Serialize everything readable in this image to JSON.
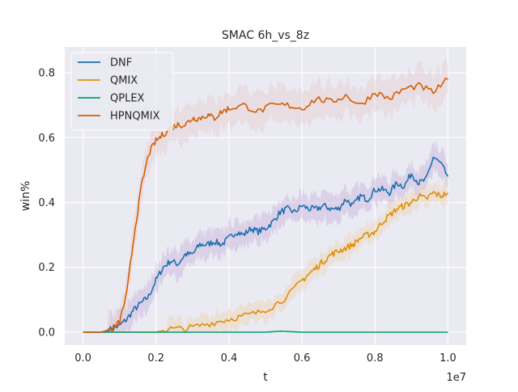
{
  "chart_data": {
    "type": "line",
    "title": "SMAC 6h_vs_8z",
    "xlabel": "t",
    "ylabel": "win%",
    "x_offset_label": "1e7",
    "xlim": [
      -0.05,
      1.05
    ],
    "ylim": [
      -0.04,
      0.88
    ],
    "x_ticks": [
      0.0,
      0.2,
      0.4,
      0.6,
      0.8,
      1.0
    ],
    "x_tick_labels": [
      "0.0",
      "0.2",
      "0.4",
      "0.6",
      "0.8",
      "1.0"
    ],
    "y_ticks": [
      0.0,
      0.2,
      0.4,
      0.6,
      0.8
    ],
    "y_tick_labels": [
      "0.0",
      "0.2",
      "0.4",
      "0.6",
      "0.8"
    ],
    "grid": true,
    "background": "#eaeaf2",
    "legend_position": "upper-left",
    "series": [
      {
        "name": "DNF",
        "color": "#1f6fb0",
        "band_color": "#c8b4dc",
        "x": [
          0.0,
          0.05,
          0.08,
          0.1,
          0.12,
          0.14,
          0.16,
          0.18,
          0.2,
          0.22,
          0.24,
          0.26,
          0.28,
          0.3,
          0.32,
          0.34,
          0.36,
          0.38,
          0.4,
          0.42,
          0.44,
          0.46,
          0.48,
          0.5,
          0.52,
          0.54,
          0.56,
          0.58,
          0.6,
          0.62,
          0.64,
          0.66,
          0.68,
          0.7,
          0.72,
          0.74,
          0.76,
          0.78,
          0.8,
          0.82,
          0.84,
          0.86,
          0.88,
          0.9,
          0.92,
          0.94,
          0.96,
          0.98,
          1.0
        ],
        "y": [
          0.0,
          0.0,
          0.01,
          0.02,
          0.04,
          0.07,
          0.09,
          0.11,
          0.16,
          0.2,
          0.22,
          0.21,
          0.24,
          0.24,
          0.27,
          0.27,
          0.28,
          0.27,
          0.29,
          0.31,
          0.3,
          0.32,
          0.31,
          0.32,
          0.34,
          0.37,
          0.38,
          0.37,
          0.39,
          0.38,
          0.38,
          0.39,
          0.38,
          0.38,
          0.41,
          0.39,
          0.42,
          0.41,
          0.44,
          0.44,
          0.43,
          0.46,
          0.45,
          0.49,
          0.46,
          0.47,
          0.54,
          0.52,
          0.48
        ],
        "band_halfwidth": 0.04
      },
      {
        "name": "QMIX",
        "color": "#de8f05",
        "band_color": "#f0d2b4",
        "x": [
          0.0,
          0.2,
          0.24,
          0.28,
          0.32,
          0.36,
          0.4,
          0.44,
          0.48,
          0.52,
          0.56,
          0.6,
          0.62,
          0.64,
          0.66,
          0.68,
          0.7,
          0.72,
          0.74,
          0.76,
          0.78,
          0.8,
          0.82,
          0.84,
          0.86,
          0.88,
          0.9,
          0.92,
          0.94,
          0.96,
          0.98,
          1.0
        ],
        "y": [
          0.0,
          0.0,
          0.01,
          0.01,
          0.02,
          0.03,
          0.04,
          0.05,
          0.06,
          0.08,
          0.11,
          0.16,
          0.18,
          0.2,
          0.22,
          0.24,
          0.25,
          0.26,
          0.27,
          0.29,
          0.3,
          0.31,
          0.34,
          0.36,
          0.38,
          0.39,
          0.4,
          0.42,
          0.41,
          0.43,
          0.42,
          0.43
        ],
        "band_halfwidth": 0.03
      },
      {
        "name": "QPLEX",
        "color": "#029e73",
        "band_color": "#c0e0d4",
        "x": [
          0.0,
          0.2,
          0.4,
          0.5,
          0.54,
          0.58,
          0.6,
          0.8,
          1.0
        ],
        "y": [
          0.0,
          0.0,
          0.0,
          0.0,
          0.003,
          0.001,
          0.0,
          0.0,
          0.0
        ],
        "band_halfwidth": 0.0
      },
      {
        "name": "HPNQMIX",
        "color": "#d55e00",
        "band_color": "#e6cfcf",
        "x": [
          0.0,
          0.05,
          0.08,
          0.1,
          0.12,
          0.14,
          0.16,
          0.18,
          0.2,
          0.22,
          0.24,
          0.26,
          0.28,
          0.3,
          0.32,
          0.34,
          0.36,
          0.38,
          0.4,
          0.44,
          0.48,
          0.52,
          0.56,
          0.6,
          0.64,
          0.68,
          0.72,
          0.76,
          0.8,
          0.84,
          0.88,
          0.92,
          0.96,
          1.0
        ],
        "y": [
          0.0,
          0.0,
          0.01,
          0.03,
          0.12,
          0.3,
          0.45,
          0.55,
          0.59,
          0.61,
          0.63,
          0.64,
          0.64,
          0.66,
          0.66,
          0.67,
          0.66,
          0.68,
          0.69,
          0.7,
          0.68,
          0.7,
          0.7,
          0.69,
          0.72,
          0.71,
          0.73,
          0.7,
          0.74,
          0.72,
          0.75,
          0.76,
          0.74,
          0.78
        ],
        "band_halfwidth": 0.05
      }
    ]
  }
}
